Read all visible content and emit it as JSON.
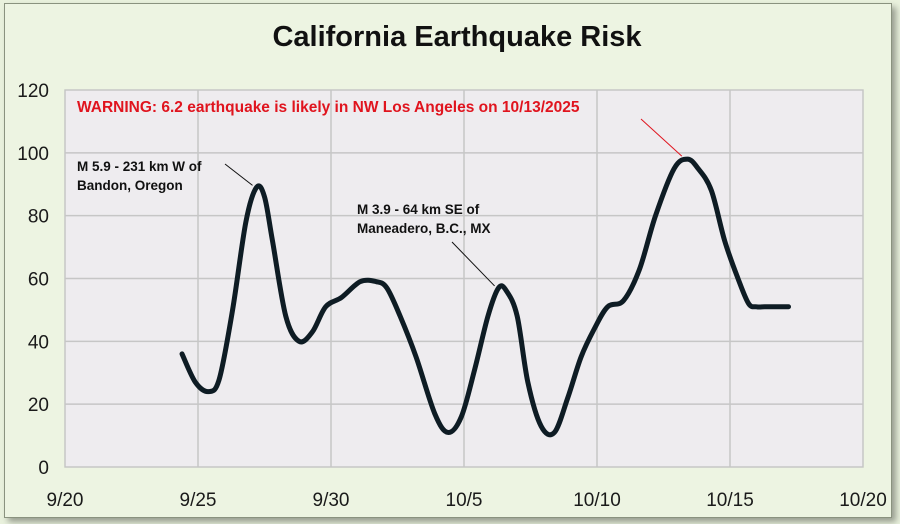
{
  "chart_data": {
    "type": "line",
    "title": "California Earthquake Risk",
    "xlabel": "",
    "ylabel": "",
    "x_ticks": [
      "9/20",
      "9/25",
      "9/30",
      "10/5",
      "10/10",
      "10/15",
      "10/20"
    ],
    "y_ticks": [
      "0",
      "20",
      "40",
      "60",
      "80",
      "100",
      "120"
    ],
    "xlim": [
      0,
      30
    ],
    "ylim": [
      0,
      120
    ],
    "grid": true,
    "x_unit_note": "",
    "series": [
      {
        "color": "#0e1c24",
        "x": [
          4.4,
          4.9,
          5.4,
          5.8,
          6.3,
          6.8,
          7.2,
          7.5,
          7.8,
          8.3,
          8.8,
          9.3,
          9.8,
          10.4,
          11.1,
          11.7,
          12.1,
          12.6,
          13.2,
          13.9,
          14.4,
          14.9,
          15.4,
          15.9,
          16.3,
          16.6,
          17.0,
          17.4,
          17.9,
          18.4,
          18.9,
          19.4,
          19.9,
          20.4,
          21.0,
          21.6,
          22.2,
          22.9,
          23.4,
          23.8,
          24.3,
          24.8,
          25.3,
          25.7,
          26.0,
          26.3,
          26.6,
          26.9,
          27.2
        ],
        "y": [
          36,
          27,
          24,
          28,
          50,
          78,
          89,
          86,
          72,
          48,
          40,
          43,
          51,
          54,
          59,
          59,
          57,
          48,
          35,
          17,
          11,
          16,
          31,
          48,
          57,
          56,
          48,
          27,
          13,
          11,
          22,
          35,
          44,
          51,
          53,
          63,
          80,
          95,
          98,
          95,
          88,
          72,
          60,
          52,
          51,
          51,
          51,
          51,
          51
        ]
      }
    ],
    "annotations": [
      {
        "lines": [
          "M 5.9 - 231 km W of",
          "Bandon, Oregon"
        ],
        "target": [
          7.2,
          89
        ]
      },
      {
        "lines": [
          "M 3.9 - 64 km SE of",
          "Maneadero, B.C., MX"
        ],
        "target": [
          16.3,
          57
        ]
      }
    ],
    "warning": {
      "text": "WARNING: 6.2 earthquake is likely in NW Los Angeles on 10/13/2025",
      "color": "#e0141e",
      "target": [
        23.3,
        98
      ]
    },
    "colors": {
      "plot_bg": "#eeecef",
      "gridline": "#c6c6c6",
      "outer_bg": "#edf4e2",
      "line": "#0e1c24"
    }
  }
}
